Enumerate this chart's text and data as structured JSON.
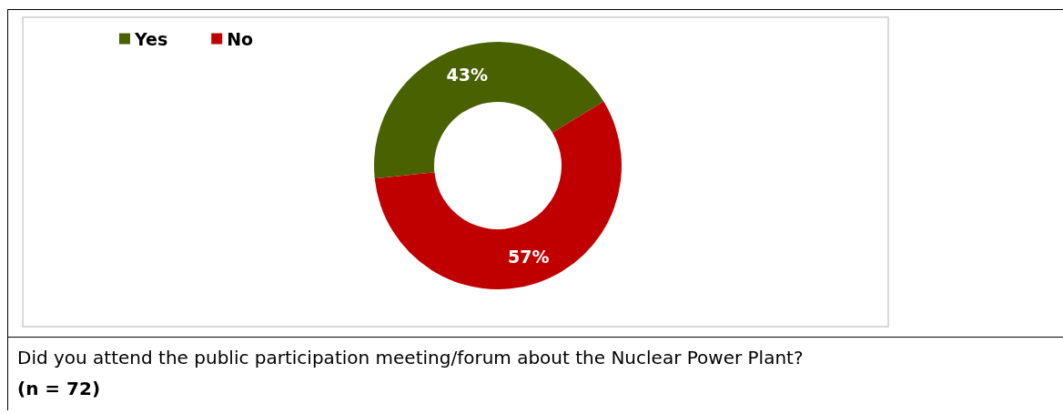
{
  "chart_data": {
    "type": "donut",
    "title": "Did you attend the public participation meeting/forum about the Nuclear Power Plant?",
    "annotations": [
      "(n = 72)"
    ],
    "categories": [
      "Yes",
      "No"
    ],
    "values": [
      43,
      57
    ],
    "colors": [
      "#4a6100",
      "#c00000"
    ],
    "value_labels": [
      "43%",
      "57%"
    ],
    "legend": "top left"
  }
}
